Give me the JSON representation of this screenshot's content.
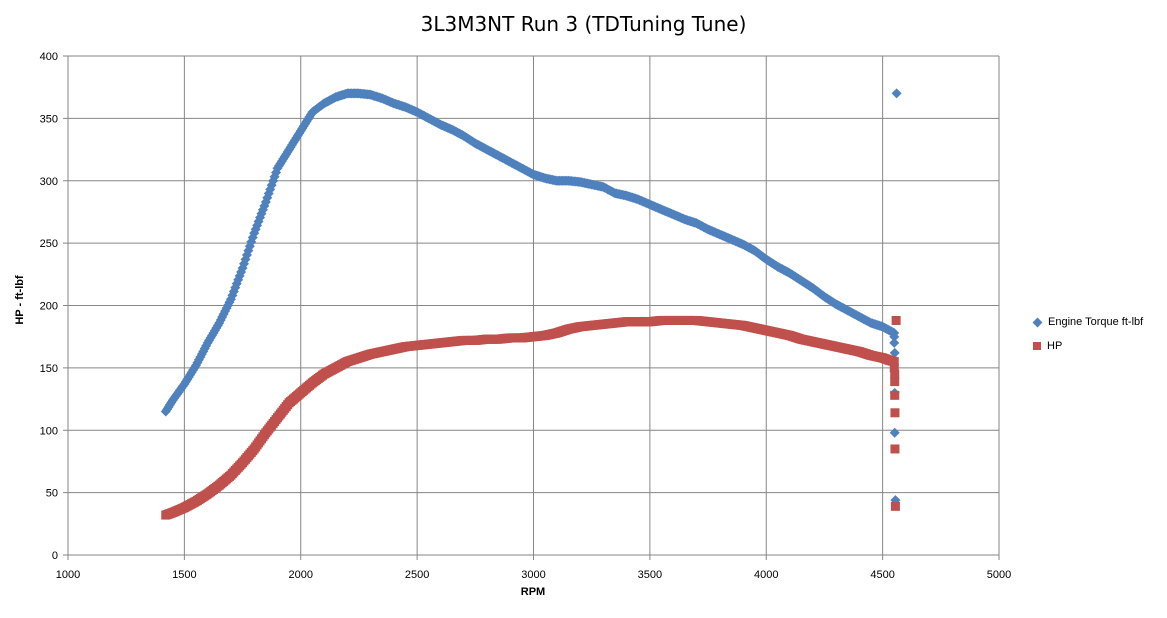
{
  "chart_data": {
    "type": "scatter",
    "title": "3L3M3NT Run 3 (TDTuning Tune)",
    "xlabel": "RPM",
    "ylabel": "HP - ft-lbf",
    "xlim": [
      1000,
      5000
    ],
    "ylim": [
      0,
      400
    ],
    "x_ticks": [
      "1000",
      "1500",
      "2000",
      "2500",
      "3000",
      "3500",
      "4000",
      "4500",
      "5000"
    ],
    "y_ticks": [
      "0",
      "50",
      "100",
      "150",
      "200",
      "250",
      "300",
      "350",
      "400"
    ],
    "grid": true,
    "legend_position": "right",
    "series": [
      {
        "name": "Engine Torque ft-lbf",
        "color": "#4F81BD",
        "marker": "diamond",
        "points": [
          [
            1420,
            115
          ],
          [
            1450,
            124
          ],
          [
            1500,
            137
          ],
          [
            1550,
            152
          ],
          [
            1600,
            170
          ],
          [
            1650,
            186
          ],
          [
            1700,
            205
          ],
          [
            1750,
            230
          ],
          [
            1800,
            258
          ],
          [
            1850,
            283
          ],
          [
            1900,
            310
          ],
          [
            1950,
            325
          ],
          [
            2000,
            340
          ],
          [
            2050,
            355
          ],
          [
            2100,
            362
          ],
          [
            2150,
            367
          ],
          [
            2200,
            370
          ],
          [
            2250,
            370
          ],
          [
            2300,
            369
          ],
          [
            2350,
            366
          ],
          [
            2400,
            362
          ],
          [
            2450,
            359
          ],
          [
            2500,
            355
          ],
          [
            2550,
            350
          ],
          [
            2600,
            345
          ],
          [
            2650,
            341
          ],
          [
            2700,
            336
          ],
          [
            2750,
            330
          ],
          [
            2800,
            325
          ],
          [
            2850,
            320
          ],
          [
            2900,
            315
          ],
          [
            2950,
            310
          ],
          [
            3000,
            305
          ],
          [
            3050,
            302
          ],
          [
            3100,
            300
          ],
          [
            3150,
            300
          ],
          [
            3200,
            299
          ],
          [
            3250,
            297
          ],
          [
            3300,
            295
          ],
          [
            3350,
            290
          ],
          [
            3400,
            288
          ],
          [
            3450,
            285
          ],
          [
            3500,
            281
          ],
          [
            3550,
            277
          ],
          [
            3600,
            273
          ],
          [
            3650,
            269
          ],
          [
            3700,
            266
          ],
          [
            3750,
            261
          ],
          [
            3800,
            257
          ],
          [
            3850,
            253
          ],
          [
            3900,
            249
          ],
          [
            3950,
            244
          ],
          [
            4000,
            237
          ],
          [
            4050,
            231
          ],
          [
            4100,
            226
          ],
          [
            4150,
            220
          ],
          [
            4200,
            214
          ],
          [
            4250,
            207
          ],
          [
            4300,
            201
          ],
          [
            4350,
            196
          ],
          [
            4400,
            191
          ],
          [
            4450,
            186
          ],
          [
            4500,
            183
          ],
          [
            4530,
            180
          ],
          [
            4550,
            178
          ],
          [
            4550,
            175
          ],
          [
            4550,
            170
          ],
          [
            4552,
            162
          ],
          [
            4552,
            130
          ],
          [
            4552,
            98
          ],
          [
            4555,
            44
          ],
          [
            4560,
            370
          ]
        ]
      },
      {
        "name": "HP",
        "color": "#C0504D",
        "marker": "square",
        "points": [
          [
            1420,
            32
          ],
          [
            1450,
            34
          ],
          [
            1500,
            38
          ],
          [
            1550,
            43
          ],
          [
            1600,
            49
          ],
          [
            1650,
            56
          ],
          [
            1700,
            64
          ],
          [
            1750,
            74
          ],
          [
            1800,
            85
          ],
          [
            1850,
            98
          ],
          [
            1900,
            110
          ],
          [
            1950,
            122
          ],
          [
            2000,
            130
          ],
          [
            2050,
            138
          ],
          [
            2100,
            145
          ],
          [
            2150,
            150
          ],
          [
            2200,
            155
          ],
          [
            2250,
            158
          ],
          [
            2300,
            161
          ],
          [
            2350,
            163
          ],
          [
            2400,
            165
          ],
          [
            2450,
            167
          ],
          [
            2500,
            168
          ],
          [
            2550,
            169
          ],
          [
            2600,
            170
          ],
          [
            2650,
            171
          ],
          [
            2700,
            172
          ],
          [
            2750,
            172
          ],
          [
            2800,
            173
          ],
          [
            2850,
            173
          ],
          [
            2900,
            174
          ],
          [
            2950,
            174
          ],
          [
            3000,
            175
          ],
          [
            3050,
            176
          ],
          [
            3100,
            178
          ],
          [
            3150,
            181
          ],
          [
            3200,
            183
          ],
          [
            3250,
            184
          ],
          [
            3300,
            185
          ],
          [
            3350,
            186
          ],
          [
            3400,
            187
          ],
          [
            3450,
            187
          ],
          [
            3500,
            187
          ],
          [
            3550,
            188
          ],
          [
            3600,
            188
          ],
          [
            3650,
            188
          ],
          [
            3700,
            188
          ],
          [
            3750,
            187
          ],
          [
            3800,
            186
          ],
          [
            3850,
            185
          ],
          [
            3900,
            184
          ],
          [
            3950,
            182
          ],
          [
            4000,
            180
          ],
          [
            4050,
            178
          ],
          [
            4100,
            176
          ],
          [
            4150,
            173
          ],
          [
            4200,
            171
          ],
          [
            4250,
            169
          ],
          [
            4300,
            167
          ],
          [
            4350,
            165
          ],
          [
            4400,
            163
          ],
          [
            4450,
            160
          ],
          [
            4500,
            158
          ],
          [
            4530,
            156
          ],
          [
            4550,
            155
          ],
          [
            4550,
            150
          ],
          [
            4552,
            145
          ],
          [
            4552,
            139
          ],
          [
            4552,
            128
          ],
          [
            4553,
            114
          ],
          [
            4553,
            85
          ],
          [
            4555,
            39
          ],
          [
            4558,
            188
          ]
        ]
      }
    ]
  }
}
